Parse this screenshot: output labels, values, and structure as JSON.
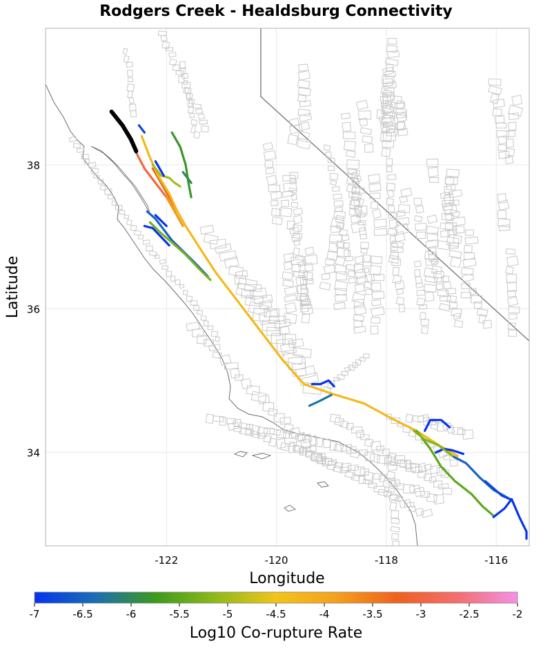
{
  "title": "Rodgers Creek - Healdsburg Connectivity",
  "colors": {
    "grid": "#e8e8e8",
    "frame": "#b0b0b0",
    "coast": "#6a6a6a",
    "fault_gray": "#c8c8c8",
    "boundary": "#707070",
    "source_fault": "#000000"
  },
  "chart_data": {
    "type": "map",
    "title": "Rodgers Creek - Healdsburg Connectivity",
    "xlabel": "Longitude",
    "ylabel": "Latitude",
    "xlim": [
      -124.2,
      -115.4
    ],
    "ylim": [
      32.7,
      39.9
    ],
    "xticks": [
      {
        "value": -122,
        "label": "-122"
      },
      {
        "value": -120,
        "label": "-120"
      },
      {
        "value": -118,
        "label": "-118"
      },
      {
        "value": -116,
        "label": "-116"
      }
    ],
    "yticks": [
      {
        "value": 34,
        "label": "34"
      },
      {
        "value": 36,
        "label": "36"
      },
      {
        "value": 38,
        "label": "38"
      }
    ],
    "grid": true,
    "colorbar": {
      "label": "Log10 Co-rupture Rate",
      "min": -7,
      "max": -2,
      "ticks": [
        {
          "value": -7,
          "label": "-7"
        },
        {
          "value": -6.5,
          "label": "-6.5"
        },
        {
          "value": -6,
          "label": "-6"
        },
        {
          "value": -5.5,
          "label": "-5.5"
        },
        {
          "value": -5,
          "label": "-5"
        },
        {
          "value": -4.5,
          "label": "-4.5"
        },
        {
          "value": -4,
          "label": "-4"
        },
        {
          "value": -3.5,
          "label": "-3.5"
        },
        {
          "value": -3,
          "label": "-3"
        },
        {
          "value": -2.5,
          "label": "-2.5"
        },
        {
          "value": -2,
          "label": "-2"
        }
      ],
      "stops": [
        "#0533ee",
        "#1a6eb5",
        "#3c9a1c",
        "#8fba1a",
        "#f2c418",
        "#f5a01c",
        "#f0601e",
        "#f46e6e",
        "#f590e8"
      ]
    },
    "source_fault": {
      "name": "Rodgers Creek - Healdsburg",
      "points": [
        [
          -123.0,
          38.74
        ],
        [
          -122.8,
          38.55
        ],
        [
          -122.65,
          38.36
        ],
        [
          -122.55,
          38.19
        ]
      ]
    },
    "fault_sections": [
      {
        "value": -3.0,
        "points": [
          [
            -122.55,
            38.17
          ],
          [
            -122.4,
            37.95
          ],
          [
            -122.2,
            37.75
          ],
          [
            -122.0,
            37.55
          ]
        ]
      },
      {
        "value": -3.3,
        "points": [
          [
            -122.25,
            37.95
          ],
          [
            -122.1,
            37.75
          ],
          [
            -121.95,
            37.55
          ],
          [
            -121.8,
            37.35
          ]
        ]
      },
      {
        "value": -4.3,
        "points": [
          [
            -122.45,
            38.4
          ],
          [
            -122.3,
            38.1
          ],
          [
            -122.15,
            37.85
          ],
          [
            -121.95,
            37.6
          ],
          [
            -121.8,
            37.35
          ],
          [
            -121.65,
            37.15
          ],
          [
            -121.4,
            36.85
          ],
          [
            -121.1,
            36.5
          ],
          [
            -120.7,
            36.1
          ],
          [
            -120.3,
            35.7
          ],
          [
            -119.9,
            35.3
          ],
          [
            -119.5,
            34.95
          ],
          [
            -119.0,
            34.82
          ],
          [
            -118.4,
            34.68
          ],
          [
            -117.9,
            34.47
          ],
          [
            -117.45,
            34.3
          ],
          [
            -117.0,
            34.08
          ],
          [
            -116.7,
            33.95
          ]
        ]
      },
      {
        "value": -3.8,
        "points": [
          [
            -122.0,
            37.55
          ],
          [
            -121.85,
            37.35
          ],
          [
            -121.7,
            37.15
          ]
        ]
      },
      {
        "value": -5.0,
        "points": [
          [
            -122.25,
            38.0
          ],
          [
            -122.1,
            37.85
          ],
          [
            -121.95,
            37.82
          ],
          [
            -121.85,
            37.75
          ],
          [
            -121.75,
            37.7
          ]
        ]
      },
      {
        "value": -5.8,
        "points": [
          [
            -121.9,
            38.45
          ],
          [
            -121.75,
            38.25
          ],
          [
            -121.65,
            38.0
          ],
          [
            -121.6,
            37.75
          ],
          [
            -121.55,
            37.55
          ]
        ]
      },
      {
        "value": -6.0,
        "points": [
          [
            -121.7,
            37.9
          ],
          [
            -121.55,
            37.75
          ]
        ]
      },
      {
        "value": -6.5,
        "points": [
          [
            -122.35,
            37.35
          ],
          [
            -122.2,
            37.25
          ],
          [
            -122.05,
            37.1
          ],
          [
            -121.9,
            36.95
          ],
          [
            -121.7,
            36.8
          ],
          [
            -121.5,
            36.65
          ],
          [
            -121.25,
            36.45
          ]
        ]
      },
      {
        "value": -5.3,
        "points": [
          [
            -122.3,
            37.2
          ],
          [
            -122.1,
            37.05
          ],
          [
            -121.9,
            36.92
          ],
          [
            -121.65,
            36.75
          ],
          [
            -121.4,
            36.55
          ],
          [
            -121.2,
            36.4
          ]
        ]
      },
      {
        "value": -7.0,
        "points": [
          [
            -122.4,
            37.15
          ],
          [
            -122.25,
            37.12
          ],
          [
            -122.1,
            37.0
          ],
          [
            -121.95,
            36.88
          ]
        ]
      },
      {
        "value": -7.0,
        "points": [
          [
            -122.2,
            37.3
          ],
          [
            -122.0,
            37.15
          ]
        ]
      },
      {
        "value": -7.0,
        "points": [
          [
            -122.2,
            38.05
          ],
          [
            -122.05,
            37.85
          ]
        ]
      },
      {
        "value": -6.8,
        "points": [
          [
            -122.5,
            38.55
          ],
          [
            -122.4,
            38.45
          ]
        ]
      },
      {
        "value": -7.0,
        "points": [
          [
            -119.35,
            34.95
          ],
          [
            -119.2,
            34.95
          ],
          [
            -119.05,
            35.0
          ],
          [
            -118.95,
            34.92
          ]
        ]
      },
      {
        "value": -6.3,
        "points": [
          [
            -119.4,
            34.65
          ],
          [
            -119.2,
            34.72
          ],
          [
            -119.0,
            34.8
          ]
        ]
      },
      {
        "value": -7.0,
        "points": [
          [
            -117.3,
            34.3
          ],
          [
            -117.2,
            34.45
          ],
          [
            -117.0,
            34.45
          ],
          [
            -116.85,
            34.35
          ]
        ]
      },
      {
        "value": -7.0,
        "points": [
          [
            -117.1,
            34.0
          ],
          [
            -116.95,
            34.05
          ],
          [
            -116.8,
            34.03
          ],
          [
            -116.6,
            33.98
          ]
        ]
      },
      {
        "value": -6.5,
        "points": [
          [
            -116.8,
            33.95
          ],
          [
            -116.55,
            33.85
          ],
          [
            -116.3,
            33.65
          ],
          [
            -116.05,
            33.48
          ],
          [
            -115.75,
            33.35
          ]
        ]
      },
      {
        "value": -6.8,
        "points": [
          [
            -116.2,
            33.6
          ],
          [
            -115.9,
            33.4
          ],
          [
            -115.75,
            33.35
          ]
        ]
      },
      {
        "value": -5.5,
        "points": [
          [
            -117.45,
            34.3
          ],
          [
            -117.2,
            34.05
          ],
          [
            -117.0,
            33.8
          ],
          [
            -116.75,
            33.6
          ],
          [
            -116.45,
            33.42
          ],
          [
            -116.25,
            33.25
          ],
          [
            -116.05,
            33.12
          ]
        ]
      },
      {
        "value": -7.0,
        "points": [
          [
            -116.05,
            33.1
          ],
          [
            -115.85,
            33.22
          ],
          [
            -115.72,
            33.35
          ],
          [
            -115.58,
            33.1
          ],
          [
            -115.45,
            32.9
          ],
          [
            -115.45,
            32.8
          ]
        ]
      },
      {
        "value": -5.2,
        "points": [
          [
            -117.5,
            34.3
          ],
          [
            -117.3,
            34.18
          ],
          [
            -117.05,
            34.1
          ],
          [
            -116.8,
            33.95
          ]
        ]
      }
    ]
  }
}
